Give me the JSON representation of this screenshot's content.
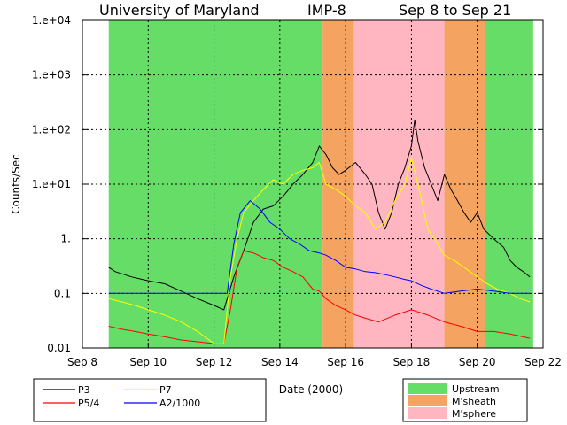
{
  "chart_data": {
    "type": "line",
    "title": {
      "institution": "University of Maryland",
      "instrument": "IMP-8",
      "range": "Sep 8 to Sep 21"
    },
    "xlabel": "Date (2000)",
    "ylabel": "Counts/Sec",
    "xlim": [
      8,
      22
    ],
    "ylim": [
      0.01,
      10000
    ],
    "yscale": "log",
    "grid": true,
    "x_ticks": [
      {
        "value": 8,
        "label": "Sep 8"
      },
      {
        "value": 10,
        "label": "Sep 10"
      },
      {
        "value": 12,
        "label": "Sep 12"
      },
      {
        "value": 14,
        "label": "Sep 14"
      },
      {
        "value": 16,
        "label": "Sep 16"
      },
      {
        "value": 18,
        "label": "Sep 18"
      },
      {
        "value": 20,
        "label": "Sep 20"
      },
      {
        "value": 22,
        "label": "Sep 22"
      }
    ],
    "y_ticks": [
      {
        "value": 0.01,
        "label": "0.01"
      },
      {
        "value": 0.1,
        "label": "0.1"
      },
      {
        "value": 1,
        "label": "1."
      },
      {
        "value": 10,
        "label": "1.e+01"
      },
      {
        "value": 100,
        "label": "1.e+02"
      },
      {
        "value": 1000,
        "label": "1.e+03"
      },
      {
        "value": 10000,
        "label": "1.e+04"
      }
    ],
    "regions": [
      {
        "type": "Upstream",
        "start": 8.8,
        "end": 15.3
      },
      {
        "type": "M'sheath",
        "start": 15.3,
        "end": 16.25
      },
      {
        "type": "M'sphere",
        "start": 16.25,
        "end": 19.0
      },
      {
        "type": "M'sheath",
        "start": 19.0,
        "end": 20.25
      },
      {
        "type": "Upstream",
        "start": 20.25,
        "end": 21.7
      }
    ],
    "region_colors": {
      "Upstream": "#66dd66",
      "M'sheath": "#f4a460",
      "M'sphere": "#ffb6c1"
    },
    "series": [
      {
        "name": "P3",
        "color": "#000000",
        "x": [
          8.8,
          9.0,
          9.5,
          10.0,
          10.5,
          11.0,
          11.5,
          12.0,
          12.3,
          12.6,
          12.9,
          13.2,
          13.5,
          13.8,
          14.1,
          14.4,
          14.7,
          15.0,
          15.2,
          15.4,
          15.6,
          15.8,
          16.0,
          16.3,
          16.6,
          16.8,
          17.0,
          17.2,
          17.4,
          17.6,
          17.8,
          18.0,
          18.1,
          18.2,
          18.4,
          18.6,
          18.8,
          19.0,
          19.2,
          19.4,
          19.6,
          19.8,
          20.0,
          20.2,
          20.5,
          20.8,
          21.0,
          21.2,
          21.4,
          21.6
        ],
        "values": [
          0.3,
          0.25,
          0.2,
          0.17,
          0.15,
          0.11,
          0.08,
          0.06,
          0.05,
          0.2,
          0.6,
          2.0,
          3.5,
          4.0,
          6.0,
          10.0,
          15.0,
          25.0,
          50.0,
          35.0,
          20.0,
          15.0,
          18.0,
          25.0,
          15.0,
          10.0,
          3.0,
          1.5,
          3.0,
          10.0,
          20.0,
          50.0,
          150.0,
          60.0,
          20.0,
          10.0,
          5.0,
          15.0,
          8.0,
          5.0,
          3.0,
          2.0,
          3.0,
          1.5,
          1.0,
          0.7,
          0.4,
          0.3,
          0.25,
          0.2
        ]
      },
      {
        "name": "P5/4",
        "color": "#ff0000",
        "x": [
          8.8,
          9.2,
          9.6,
          10.0,
          10.5,
          11.0,
          11.5,
          12.0,
          12.3,
          12.5,
          12.7,
          12.9,
          13.2,
          13.5,
          13.8,
          14.1,
          14.4,
          14.7,
          15.0,
          15.2,
          15.4,
          15.7,
          16.0,
          16.3,
          16.6,
          17.0,
          17.5,
          18.0,
          18.5,
          19.0,
          19.5,
          20.0,
          20.5,
          21.0,
          21.6
        ],
        "values": [
          0.025,
          0.022,
          0.02,
          0.018,
          0.016,
          0.014,
          0.013,
          0.012,
          0.012,
          0.05,
          0.3,
          0.6,
          0.55,
          0.45,
          0.4,
          0.3,
          0.25,
          0.2,
          0.12,
          0.11,
          0.08,
          0.06,
          0.05,
          0.04,
          0.035,
          0.03,
          0.04,
          0.05,
          0.04,
          0.03,
          0.025,
          0.02,
          0.02,
          0.018,
          0.015
        ]
      },
      {
        "name": "P7",
        "color": "#ffff00",
        "x": [
          8.8,
          9.2,
          9.6,
          10.0,
          10.5,
          11.0,
          11.5,
          12.0,
          12.3,
          12.5,
          12.7,
          12.9,
          13.2,
          13.5,
          13.8,
          14.1,
          14.4,
          14.7,
          15.0,
          15.2,
          15.4,
          15.7,
          16.0,
          16.3,
          16.6,
          16.9,
          17.2,
          17.5,
          17.8,
          18.0,
          18.2,
          18.5,
          18.8,
          19.0,
          19.3,
          19.6,
          20.0,
          20.3,
          20.6,
          21.0,
          21.3,
          21.6
        ],
        "values": [
          0.08,
          0.07,
          0.06,
          0.05,
          0.04,
          0.03,
          0.02,
          0.012,
          0.012,
          0.2,
          1.0,
          3.0,
          5.0,
          8.0,
          12.0,
          10.0,
          15.0,
          18.0,
          20.0,
          25.0,
          10.0,
          8.0,
          6.0,
          4.0,
          3.0,
          1.5,
          2.0,
          5.0,
          10.0,
          30.0,
          10.0,
          1.5,
          0.8,
          0.5,
          0.4,
          0.3,
          0.2,
          0.15,
          0.12,
          0.1,
          0.08,
          0.07
        ]
      },
      {
        "name": "A2/1000",
        "color": "#0000ff",
        "x": [
          8.8,
          9.5,
          10.0,
          10.5,
          11.0,
          11.5,
          12.0,
          12.2,
          12.4,
          12.6,
          12.8,
          13.1,
          13.4,
          13.7,
          14.0,
          14.3,
          14.6,
          14.9,
          15.2,
          15.4,
          15.7,
          16.0,
          16.3,
          16.6,
          16.9,
          17.2,
          17.5,
          17.8,
          18.0,
          18.3,
          18.6,
          19.0,
          19.5,
          20.0,
          20.5,
          21.0,
          21.6
        ],
        "values": [
          0.1,
          0.1,
          0.1,
          0.1,
          0.1,
          0.1,
          0.1,
          0.1,
          0.1,
          0.8,
          3.0,
          5.0,
          3.5,
          2.0,
          1.5,
          1.0,
          0.8,
          0.6,
          0.55,
          0.5,
          0.4,
          0.3,
          0.28,
          0.25,
          0.24,
          0.22,
          0.2,
          0.18,
          0.17,
          0.14,
          0.12,
          0.1,
          0.11,
          0.12,
          0.11,
          0.1,
          0.1
        ]
      }
    ],
    "legend": {
      "series_placement": "bottom-left",
      "region_placement": "bottom-right",
      "region_labels": [
        "Upstream",
        "M'sheath",
        "M'sphere"
      ]
    }
  }
}
